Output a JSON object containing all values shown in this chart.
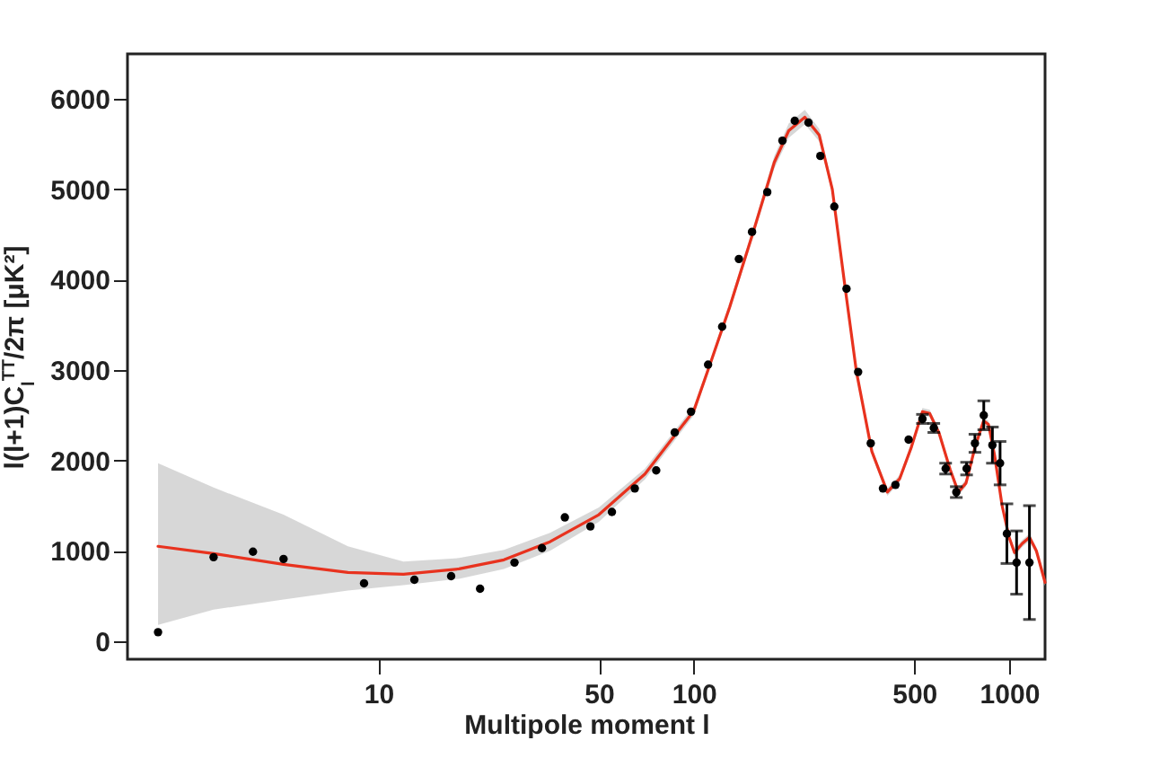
{
  "chart_data": {
    "type": "scatter",
    "xlabel": "Multipole moment l",
    "ylabel": "l(l+1)C$_{l}$$^{TT}$/2π  [μK²]",
    "log": "x",
    "xlim": [
      1.6,
      1300
    ],
    "xticks": [
      10,
      50,
      100,
      500,
      1000
    ],
    "ylim": [
      -200,
      6500
    ],
    "yticks": [
      0,
      1000,
      2000,
      3000,
      4000,
      5000,
      6000
    ],
    "grid": false,
    "series": [
      {
        "color": "#000000",
        "marker": "circle",
        "x": [
          2,
          3,
          4,
          5,
          9,
          13,
          17,
          21,
          27,
          33,
          39,
          47,
          55,
          65,
          76,
          87,
          98,
          111,
          123,
          139,
          153,
          171,
          191,
          209,
          231,
          252,
          279,
          305,
          332,
          364,
          398,
          436,
          480,
          531,
          577,
          629,
          680,
          733,
          779,
          831,
          885,
          936,
          984,
          1056,
          1160
        ],
        "values": [
          100,
          930,
          990,
          910,
          640,
          680,
          720,
          580,
          870,
          1030,
          1370,
          1270,
          1430,
          1690,
          1890,
          2310,
          2540,
          3060,
          3480,
          4230,
          4530,
          4970,
          5540,
          5760,
          5740,
          5370,
          4810,
          3900,
          2980,
          2190,
          1690,
          1730,
          2230,
          2460,
          2360,
          1910,
          1650,
          1910,
          2190,
          2500,
          2170,
          1970,
          1190,
          870,
          870
        ],
        "errors": [
          null,
          null,
          null,
          null,
          null,
          null,
          null,
          null,
          null,
          null,
          null,
          null,
          null,
          null,
          null,
          null,
          null,
          null,
          null,
          null,
          null,
          null,
          null,
          null,
          null,
          null,
          null,
          null,
          null,
          null,
          null,
          null,
          null,
          50,
          50,
          60,
          60,
          70,
          100,
          160,
          200,
          240,
          330,
          350,
          630
        ]
      },
      {
        "type": "line",
        "color": "#e8321e",
        "x": [
          2,
          3,
          5,
          8,
          12,
          18,
          25,
          35,
          50,
          70,
          100,
          113,
          130,
          155,
          180,
          200,
          225,
          250,
          275,
          302,
          328,
          367,
          411,
          450,
          490,
          531,
          560,
          600,
          650,
          690,
          730,
          780,
          830,
          860,
          900,
          950,
          1000,
          1040,
          1100,
          1160,
          1220,
          1300
        ],
        "values": [
          1050,
          970,
          850,
          760,
          740,
          800,
          900,
          1100,
          1400,
          1850,
          2550,
          3080,
          3700,
          4550,
          5300,
          5650,
          5800,
          5600,
          5000,
          3910,
          2980,
          2100,
          1650,
          1800,
          2150,
          2540,
          2520,
          2300,
          1900,
          1650,
          1750,
          2150,
          2440,
          2400,
          2050,
          1500,
          1150,
          980,
          1080,
          1150,
          1000,
          650
        ],
        "lower": [
          180,
          350,
          460,
          560,
          620,
          690,
          800,
          1000,
          1320,
          1790,
          2500,
          3040,
          3650,
          4500,
          5230,
          5570,
          5720,
          5530,
          4950,
          3870,
          2940,
          2060,
          1610,
          1760,
          2110,
          2500,
          2480,
          2260,
          1860,
          1610,
          1710,
          2110,
          2400,
          2360,
          2010,
          1460,
          1110,
          940,
          1040,
          1110,
          960,
          610
        ],
        "upper": [
          1970,
          1700,
          1400,
          1050,
          880,
          920,
          1010,
          1200,
          1480,
          1910,
          2600,
          3120,
          3750,
          4600,
          5370,
          5730,
          5880,
          5670,
          5050,
          3960,
          3020,
          2140,
          1690,
          1840,
          2190,
          2580,
          2560,
          2340,
          1940,
          1690,
          1790,
          2190,
          2480,
          2440,
          2090,
          1540,
          1190,
          1020,
          1120,
          1190,
          1040,
          690
        ]
      }
    ]
  }
}
